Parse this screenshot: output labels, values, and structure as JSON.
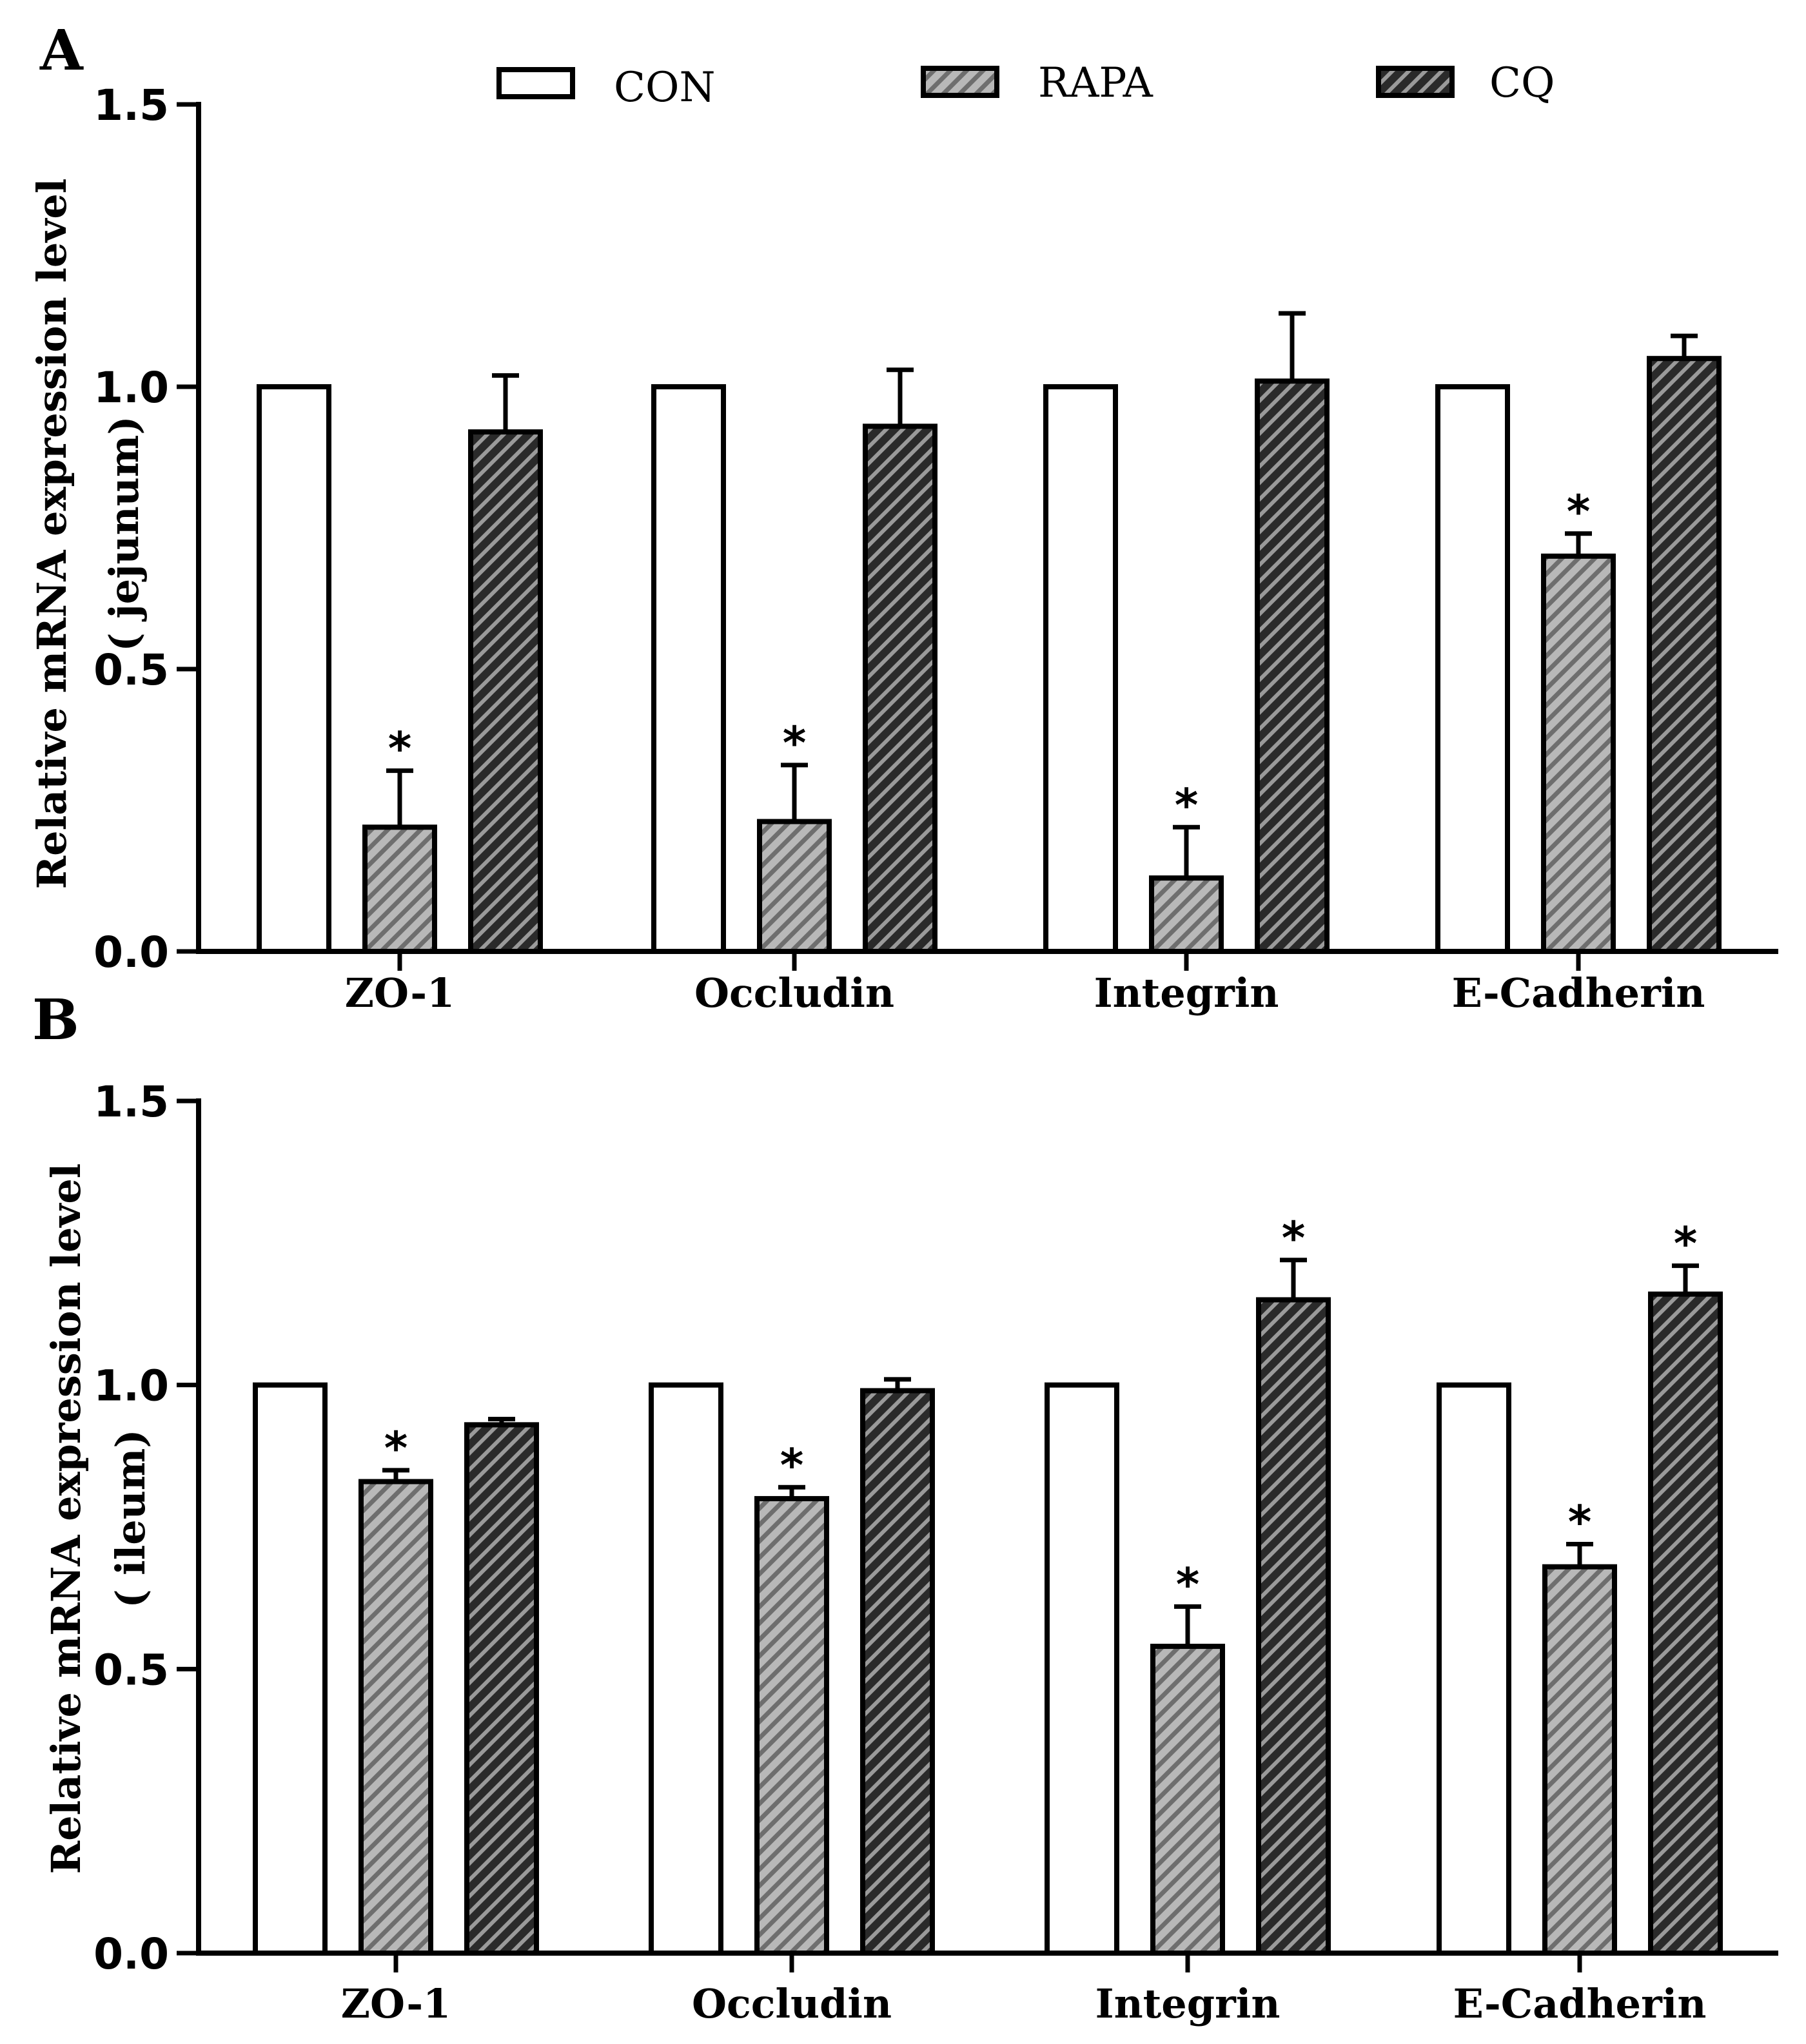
{
  "colors": {
    "con_fill": "#ffffff",
    "rapa_fill": "#b8b8b8",
    "rapa_stripe": "#6e6e6e",
    "cq_fill": "#2a2a2a",
    "cq_stripe": "#9a9a9a",
    "ink": "#000000"
  },
  "legend": [
    {
      "key": "CON",
      "label": "CON"
    },
    {
      "key": "RAPA",
      "label": "RAPA"
    },
    {
      "key": "CQ",
      "label": "CQ"
    }
  ],
  "chart_data": [
    {
      "panel": "A",
      "type": "bar",
      "ylabel_line1": "Relative mRNA expression level",
      "ylabel_line2": "( jejunum)",
      "ylim": [
        0,
        1.5
      ],
      "yticks": [
        "0.0",
        "0.5",
        "1.0",
        "1.5"
      ],
      "ytick_values": [
        0,
        0.5,
        1.0,
        1.5
      ],
      "categories": [
        "ZO-1",
        "Occludin",
        "Integrin",
        "E-Cadherin"
      ],
      "series": [
        {
          "name": "CON",
          "values": [
            1.0,
            1.0,
            1.0,
            1.0
          ],
          "errors": [
            0,
            0,
            0,
            0
          ],
          "sig": [
            "",
            "",
            "",
            ""
          ]
        },
        {
          "name": "RAPA",
          "values": [
            0.22,
            0.23,
            0.13,
            0.7
          ],
          "errors": [
            0.1,
            0.1,
            0.09,
            0.04
          ],
          "sig": [
            "*",
            "*",
            "*",
            "*"
          ]
        },
        {
          "name": "CQ",
          "values": [
            0.92,
            0.93,
            1.01,
            1.05
          ],
          "errors": [
            0.1,
            0.1,
            0.12,
            0.04
          ],
          "sig": [
            "",
            "",
            "",
            ""
          ]
        }
      ]
    },
    {
      "panel": "B",
      "type": "bar",
      "ylabel_line1": "Relative mRNA expression level",
      "ylabel_line2": "( ileum)",
      "ylim": [
        0,
        1.5
      ],
      "yticks": [
        "0.0",
        "0.5",
        "1.0",
        "1.5"
      ],
      "ytick_values": [
        0,
        0.5,
        1.0,
        1.5
      ],
      "categories": [
        "ZO-1",
        "Occludin",
        "Integrin",
        "E-Cadherin"
      ],
      "series": [
        {
          "name": "CON",
          "values": [
            1.0,
            1.0,
            1.0,
            1.0
          ],
          "errors": [
            0,
            0,
            0,
            0
          ],
          "sig": [
            "",
            "",
            "",
            ""
          ]
        },
        {
          "name": "RAPA",
          "values": [
            0.83,
            0.8,
            0.54,
            0.68
          ],
          "errors": [
            0.02,
            0.02,
            0.07,
            0.04
          ],
          "sig": [
            "*",
            "*",
            "*",
            "*"
          ]
        },
        {
          "name": "CQ",
          "values": [
            0.93,
            0.99,
            1.15,
            1.16
          ],
          "errors": [
            0.01,
            0.02,
            0.07,
            0.05
          ],
          "sig": [
            "",
            "",
            "*",
            "*"
          ]
        }
      ]
    }
  ]
}
